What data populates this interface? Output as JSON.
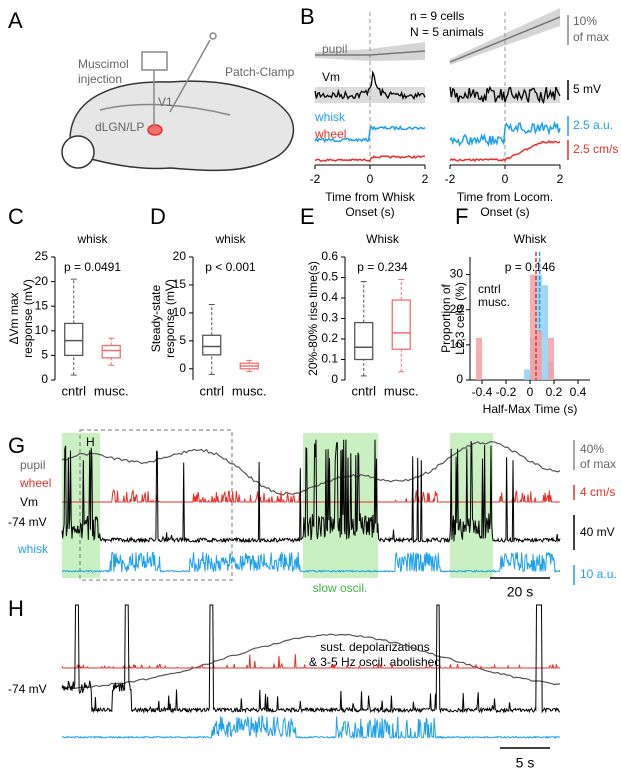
{
  "A": {
    "label": "A",
    "injection": [
      "Muscimol",
      "injection"
    ],
    "patch": "Patch-Clamp",
    "v1": "V1",
    "thalamus": "dLGN/LP"
  },
  "B": {
    "label": "B",
    "n_cells": "n = 9 cells",
    "n_animals": "N = 5 animals",
    "traces": [
      "pupil",
      "Vm",
      "whisk",
      "wheel"
    ],
    "scale_bars": [
      "10%",
      "of max",
      "5 mV",
      "2.5 a.u.",
      "2.5 cm/s"
    ],
    "plots": [
      {
        "xlim": [
          -2,
          2
        ],
        "xticks": [
          -2,
          0,
          2
        ],
        "xlabel": [
          "Time from Whisk",
          "Onset (s)"
        ]
      },
      {
        "xlim": [
          -2,
          2
        ],
        "xticks": [
          -2,
          0,
          2
        ],
        "xlabel": [
          "Time from Locom.",
          "Onset (s)"
        ]
      }
    ]
  },
  "chart_data": [
    {
      "panel": "C",
      "type": "box",
      "title": "whisk",
      "annotation": "p = 0.0491",
      "ylabel": [
        "ΔVm max",
        "response (mV)"
      ],
      "categories": [
        "cntrl",
        "musc."
      ],
      "colors": [
        "#555555",
        "#f07070"
      ],
      "boxes": [
        {
          "min": 1,
          "q1": 5,
          "median": 8,
          "q3": 11.5,
          "max": 20.5
        },
        {
          "min": 3,
          "q1": 4.5,
          "median": 6,
          "q3": 7,
          "max": 8.5
        }
      ],
      "ylim": [
        0,
        25
      ],
      "yticks": [
        0,
        5,
        10,
        15,
        20,
        25
      ]
    },
    {
      "panel": "D",
      "type": "box",
      "title": "whisk",
      "annotation": "p < 0.001",
      "ylabel": [
        "Steady-state",
        "response (mV)"
      ],
      "categories": [
        "cntrl",
        "musc."
      ],
      "colors": [
        "#555555",
        "#f07070"
      ],
      "boxes": [
        {
          "min": -1,
          "q1": 2.5,
          "median": 4,
          "q3": 6,
          "max": 11.5
        },
        {
          "min": -0.5,
          "q1": 0,
          "median": 0.5,
          "q3": 1,
          "max": 1.5
        }
      ],
      "ylim": [
        -2,
        20
      ],
      "yticks": [
        0,
        5,
        10,
        15,
        20
      ]
    },
    {
      "panel": "E",
      "type": "box",
      "title": "Whisk",
      "annotation": "p = 0.234",
      "ylabel": [
        "20%-80% rise time(s)"
      ],
      "categories": [
        "cntrl",
        "musc."
      ],
      "colors": [
        "#555555",
        "#f07070"
      ],
      "boxes": [
        {
          "min": 0.02,
          "q1": 0.1,
          "median": 0.16,
          "q3": 0.28,
          "max": 0.48
        },
        {
          "min": 0.04,
          "q1": 0.15,
          "median": 0.23,
          "q3": 0.39,
          "max": 0.49
        }
      ],
      "ylim": [
        0,
        0.6
      ],
      "yticks": [
        0,
        0.1,
        0.2,
        0.3,
        0.4,
        0.5,
        0.6
      ]
    },
    {
      "panel": "F",
      "type": "histogram",
      "title": "Whisk",
      "annotation": "p = 0.146",
      "ylabel": [
        "Proportion of",
        "L2,3 cells (%)"
      ],
      "xlabel": "Half-Max Time (s)",
      "bins": [
        -0.45,
        -0.4,
        -0.35,
        -0.3,
        -0.25,
        -0.2,
        -0.15,
        -0.1,
        -0.05,
        0,
        0.05,
        0.1,
        0.15,
        0.2,
        0.25
      ],
      "series": [
        {
          "name": "cntrl",
          "color": "#8fd0f5",
          "line_color": "#1ea0ec",
          "median": 0.08,
          "values": [
            0,
            0,
            0,
            0,
            0,
            0,
            0,
            0,
            3,
            12,
            30,
            27,
            5,
            0
          ]
        },
        {
          "name": "musc.",
          "color": "#f5a0a0",
          "line_color": "#e8302a",
          "median": 0.05,
          "values": [
            12,
            0,
            0,
            0,
            0,
            0,
            0,
            0,
            0,
            30,
            14,
            0,
            12,
            0
          ]
        }
      ],
      "xlim": [
        -0.5,
        0.5
      ],
      "xticks": [
        -0.4,
        -0.2,
        0,
        0.2,
        0.4
      ],
      "ylim": [
        0,
        35
      ],
      "yticks": [
        0,
        10,
        20,
        30
      ]
    }
  ],
  "G": {
    "label": "G",
    "inset_label": "H",
    "traces": [
      "pupil",
      "wheel",
      "Vm",
      "whisk"
    ],
    "vm_level": "-74 mV",
    "scale_bars": [
      "40%",
      "of max",
      "4 cm/s",
      "40 mV",
      "10 a.u."
    ],
    "time_bar": "20 s",
    "annotation": "slow oscil."
  },
  "H": {
    "label": "H",
    "vm_level": "-74 mV",
    "annotation": [
      "sust. depolarizations",
      "& 3-5 Hz oscil. abolished"
    ],
    "time_bar": "5 s"
  }
}
